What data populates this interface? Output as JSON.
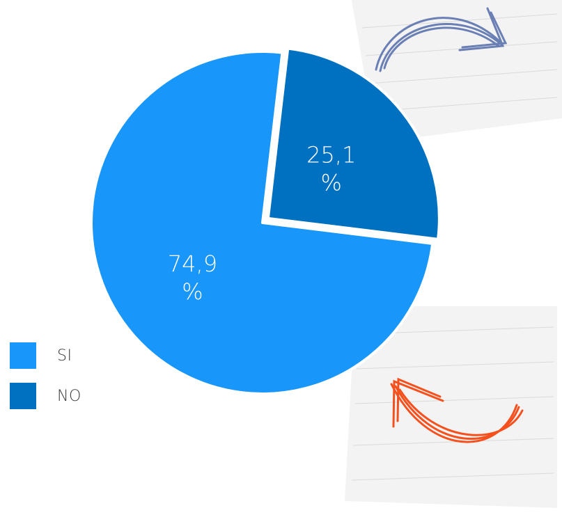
{
  "chart_data": {
    "type": "pie",
    "categories": [
      "SI",
      "NO"
    ],
    "values": [
      74.9,
      25.1
    ],
    "labels": [
      "74,9\n%",
      "25,1\n%"
    ],
    "colors": [
      "#1896fa",
      "#0070c0"
    ],
    "exploded": [
      "NO"
    ],
    "legend": "bottom-left",
    "title": "",
    "start_angle_deg": 97
  },
  "legend": {
    "items": [
      {
        "label": "SI",
        "color": "#1896fa"
      },
      {
        "label": "NO",
        "color": "#0070c0"
      }
    ]
  },
  "decorations": {
    "top_arrow_color": "#6a7fb4",
    "bottom_arrow_color": "#f4511e",
    "paper_color": "#f3f3f3"
  }
}
